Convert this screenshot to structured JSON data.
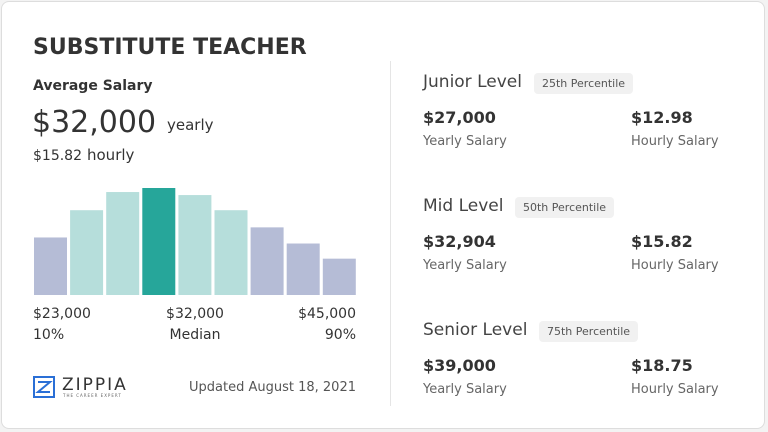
{
  "title": "SUBSTITUTE TEACHER",
  "average": {
    "label": "Average Salary",
    "yearly": "$32,000",
    "yearly_unit": "yearly",
    "hourly": "$15.82",
    "hourly_unit": "hourly"
  },
  "distribution": {
    "values": [
      57,
      84,
      102,
      106,
      99,
      84,
      67,
      51,
      36
    ],
    "colors": [
      "#b5bcd6",
      "#b6dedb",
      "#b6dedb",
      "#26a69a",
      "#b6dedb",
      "#b6dedb",
      "#b5bcd6",
      "#b5bcd6",
      "#b5bcd6"
    ]
  },
  "range": {
    "low": "$23,000",
    "median": "$32,000",
    "high": "$45,000",
    "low_pct": "10%",
    "median_label": "Median",
    "high_pct": "90%"
  },
  "logo": {
    "name": "ZIPPIA",
    "tagline": "THE CAREER EXPERT"
  },
  "updated": "Updated August 18, 2021",
  "levels": [
    {
      "name": "Junior Level",
      "percentile": "25th Percentile",
      "yearly": "$27,000",
      "yearly_label": "Yearly Salary",
      "hourly": "$12.98",
      "hourly_label": "Hourly Salary"
    },
    {
      "name": "Mid Level",
      "percentile": "50th Percentile",
      "yearly": "$32,904",
      "yearly_label": "Yearly Salary",
      "hourly": "$15.82",
      "hourly_label": "Hourly Salary"
    },
    {
      "name": "Senior Level",
      "percentile": "75th Percentile",
      "yearly": "$39,000",
      "yearly_label": "Yearly Salary",
      "hourly": "$18.75",
      "hourly_label": "Hourly Salary"
    }
  ]
}
